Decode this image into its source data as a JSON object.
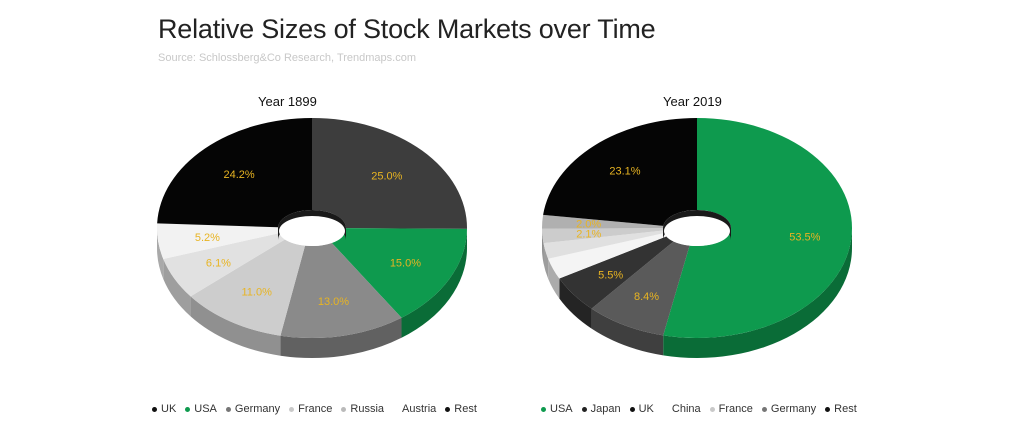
{
  "title": "Relative Sizes of Stock Markets over Time",
  "subtitle": "Source: Schlossberg&Co Research, Trendmaps.com",
  "colors": {
    "UK": "#111111",
    "USA": "#0e9a4e",
    "Germany": "#767676",
    "France": "#c9c9c9",
    "Russia": "#bababa",
    "Austria": "#ebebeb",
    "Rest": "#000000",
    "Japan": "#3a3a3a",
    "China": "#b5b5b5",
    "label": "#e8b422"
  },
  "chart_data": [
    {
      "type": "pie",
      "title": "Year 1899",
      "slices": [
        {
          "name": "UK",
          "value": 25.0,
          "label": "25.0%",
          "color": "#3d3d3d"
        },
        {
          "name": "USA",
          "value": 15.0,
          "label": "15.0%",
          "color": "#0e9a4e"
        },
        {
          "name": "Germany",
          "value": 13.0,
          "label": "13.0%",
          "color": "#8a8a8a"
        },
        {
          "name": "France",
          "value": 11.0,
          "label": "11.0%",
          "color": "#cdcdcd"
        },
        {
          "name": "Russia",
          "value": 6.1,
          "label": "6.1%",
          "color": "#e1e1e1"
        },
        {
          "name": "Austria",
          "value": 5.2,
          "label": "5.2%",
          "color": "#f2f2f2"
        },
        {
          "name": "Rest",
          "value": 24.2,
          "label": "24.2%",
          "color": "#050505"
        }
      ],
      "legend": [
        {
          "name": "UK",
          "color": "#111111"
        },
        {
          "name": "USA",
          "color": "#0e9a4e"
        },
        {
          "name": "Germany",
          "color": "#767676"
        },
        {
          "name": "France",
          "color": "#c9c9c9"
        },
        {
          "name": "Russia",
          "color": "#bababa"
        },
        {
          "name": "Austria",
          "color": "#ffffff"
        },
        {
          "name": "Rest",
          "color": "#111111"
        }
      ]
    },
    {
      "type": "pie",
      "title": "Year 2019",
      "slices": [
        {
          "name": "USA",
          "value": 53.5,
          "label": "53.5%",
          "color": "#0e9a4e"
        },
        {
          "name": "Japan",
          "value": 8.4,
          "label": "8.4%",
          "color": "#5a5a5a"
        },
        {
          "name": "UK",
          "value": 5.5,
          "label": "5.5%",
          "color": "#333333"
        },
        {
          "name": "China",
          "value": 3.1,
          "label": "",
          "color": "#f4f4f4"
        },
        {
          "name": "France",
          "value": 2.3,
          "label": "",
          "color": "#e0e0e0"
        },
        {
          "name": "Germany",
          "value": 2.1,
          "label": "2.1%",
          "color": "#cccccc"
        },
        {
          "name": "Rest",
          "value": 2.0,
          "label": "2.0%",
          "color": "#b0b0b0"
        },
        {
          "name": "Rest",
          "value": 23.1,
          "label": "23.1%",
          "color": "#050505"
        }
      ],
      "legend": [
        {
          "name": "USA",
          "color": "#0e9a4e"
        },
        {
          "name": "Japan",
          "color": "#222222"
        },
        {
          "name": "UK",
          "color": "#111111"
        },
        {
          "name": "China",
          "color": "#ffffff"
        },
        {
          "name": "France",
          "color": "#c9c9c9"
        },
        {
          "name": "Germany",
          "color": "#767676"
        },
        {
          "name": "Rest",
          "color": "#111111"
        }
      ]
    }
  ]
}
